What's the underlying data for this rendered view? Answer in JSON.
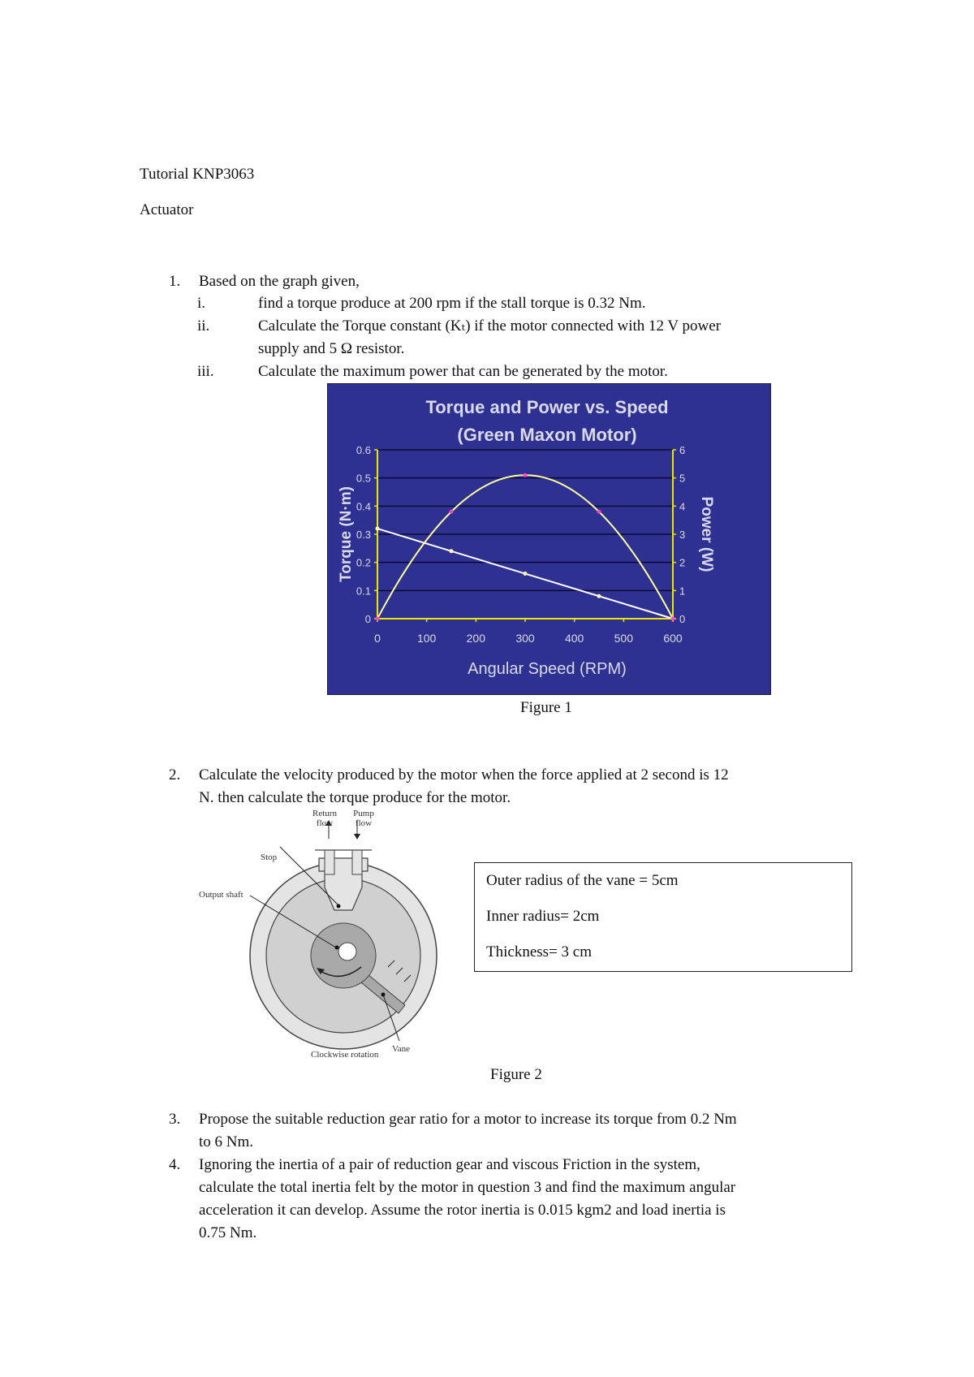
{
  "header": {
    "title": "Tutorial KNP3063",
    "subtitle": "Actuator"
  },
  "questions": [
    {
      "num": "1.",
      "lines": [
        "Based on the graph given,"
      ],
      "parts": [
        {
          "num": "i.",
          "lines": [
            "find a torque produce at 200 rpm if the stall torque is 0.32 Nm."
          ]
        },
        {
          "num": "ii.",
          "lines": [
            "Calculate the Torque constant (Kₜ) if the motor connected with 12 V power",
            "supply and 5 Ω resistor."
          ]
        },
        {
          "num": "iii.",
          "lines": [
            "Calculate the maximum power that can be generated by the motor."
          ]
        }
      ]
    },
    {
      "num": "2.",
      "lines": [
        "Calculate the velocity produced by the motor when the force applied at 2 second is 12",
        "N. then calculate the torque produce for the motor."
      ]
    },
    {
      "num": "3.",
      "lines": [
        "Propose the suitable reduction gear ratio for a motor to increase its torque from 0.2 Nm",
        "to 6 Nm."
      ]
    },
    {
      "num": "4.",
      "lines": [
        "Ignoring the inertia of a pair of reduction gear and viscous Friction in the system,",
        "calculate the total inertia felt by the motor in question 3 and find the maximum angular",
        "acceleration it can develop. Assume the rotor inertia is 0.015 kgm2 and load inertia is",
        "0.75 Nm."
      ]
    }
  ],
  "figure1": {
    "caption": "Figure 1"
  },
  "figure2": {
    "caption": "Figure 2",
    "labels": {
      "return_flow": [
        "Return",
        "flow"
      ],
      "pump_flow": [
        "Pump",
        "flow"
      ],
      "stop": "Stop",
      "output_shaft": "Output shaft",
      "vane": "Vane",
      "rotation": "Clockwise rotation"
    },
    "info_box": [
      "Outer radius of the vane = 5cm",
      "Inner radius= 2cm",
      "Thickness= 3 cm"
    ]
  },
  "chart_data": {
    "type": "line",
    "title": [
      "Torque and Power vs. Speed",
      "(Green Maxon Motor)"
    ],
    "xlabel": "Angular Speed (RPM)",
    "ylabel": "Torque (N·m)",
    "y2label": "Power (W)",
    "xlim": [
      0,
      600
    ],
    "ylim": [
      0,
      0.6
    ],
    "y2lim": [
      0,
      6
    ],
    "xticks": [
      "0",
      "100",
      "200",
      "300",
      "400",
      "500",
      "600"
    ],
    "yticks": [
      "0",
      "0.1",
      "0.2",
      "0.3",
      "0.4",
      "0.5",
      "0.6"
    ],
    "y2ticks": [
      "0",
      "1",
      "2",
      "3",
      "4",
      "5",
      "6"
    ],
    "grid": true,
    "x": [
      0,
      150,
      300,
      450,
      600
    ],
    "series": [
      {
        "axis": "left",
        "values": [
          0.32,
          0.24,
          0.16,
          0.08,
          0
        ],
        "color": "#ffffff",
        "marker_color": "#ffffaa"
      },
      {
        "axis": "right",
        "values": [
          0,
          3.8,
          5.1,
          3.8,
          0
        ],
        "color": "#ffff99",
        "marker_color": "#ff44cc"
      }
    ],
    "colors": {
      "background": "#2e3192",
      "axis": "#e8e800",
      "grid": "#0a0a30"
    }
  }
}
